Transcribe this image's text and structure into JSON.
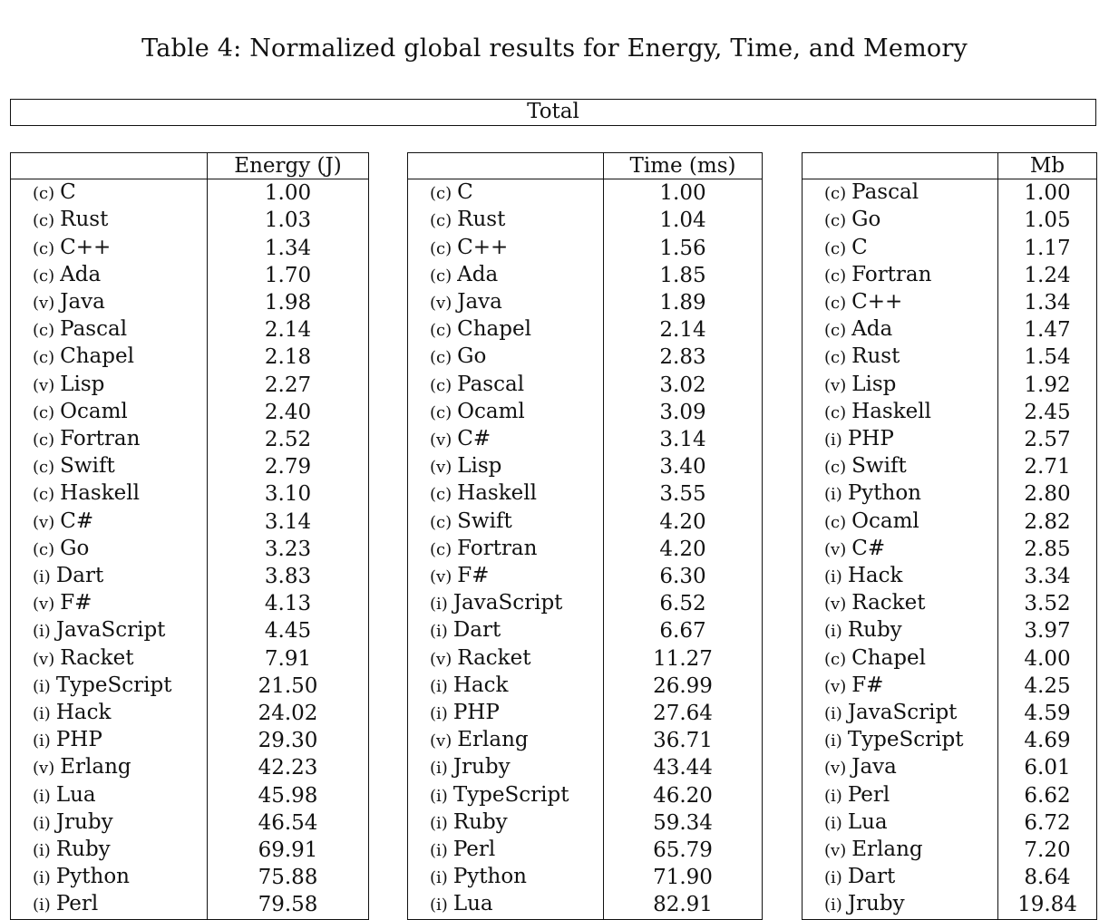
{
  "caption": "Table 4: Normalized global results for Energy, Time, and Memory",
  "total_label": "Total",
  "tables": [
    {
      "id": "energy",
      "header": "Energy (J)",
      "rows": [
        [
          "(c)",
          "C",
          "1.00"
        ],
        [
          "(c)",
          "Rust",
          "1.03"
        ],
        [
          "(c)",
          "C++",
          "1.34"
        ],
        [
          "(c)",
          "Ada",
          "1.70"
        ],
        [
          "(v)",
          "Java",
          "1.98"
        ],
        [
          "(c)",
          "Pascal",
          "2.14"
        ],
        [
          "(c)",
          "Chapel",
          "2.18"
        ],
        [
          "(v)",
          "Lisp",
          "2.27"
        ],
        [
          "(c)",
          "Ocaml",
          "2.40"
        ],
        [
          "(c)",
          "Fortran",
          "2.52"
        ],
        [
          "(c)",
          "Swift",
          "2.79"
        ],
        [
          "(c)",
          "Haskell",
          "3.10"
        ],
        [
          "(v)",
          "C#",
          "3.14"
        ],
        [
          "(c)",
          "Go",
          "3.23"
        ],
        [
          "(i)",
          "Dart",
          "3.83"
        ],
        [
          "(v)",
          "F#",
          "4.13"
        ],
        [
          "(i)",
          "JavaScript",
          "4.45"
        ],
        [
          "(v)",
          "Racket",
          "7.91"
        ],
        [
          "(i)",
          "TypeScript",
          "21.50"
        ],
        [
          "(i)",
          "Hack",
          "24.02"
        ],
        [
          "(i)",
          "PHP",
          "29.30"
        ],
        [
          "(v)",
          "Erlang",
          "42.23"
        ],
        [
          "(i)",
          "Lua",
          "45.98"
        ],
        [
          "(i)",
          "Jruby",
          "46.54"
        ],
        [
          "(i)",
          "Ruby",
          "69.91"
        ],
        [
          "(i)",
          "Python",
          "75.88"
        ],
        [
          "(i)",
          "Perl",
          "79.58"
        ]
      ]
    },
    {
      "id": "time",
      "header": "Time (ms)",
      "rows": [
        [
          "(c)",
          "C",
          "1.00"
        ],
        [
          "(c)",
          "Rust",
          "1.04"
        ],
        [
          "(c)",
          "C++",
          "1.56"
        ],
        [
          "(c)",
          "Ada",
          "1.85"
        ],
        [
          "(v)",
          "Java",
          "1.89"
        ],
        [
          "(c)",
          "Chapel",
          "2.14"
        ],
        [
          "(c)",
          "Go",
          "2.83"
        ],
        [
          "(c)",
          "Pascal",
          "3.02"
        ],
        [
          "(c)",
          "Ocaml",
          "3.09"
        ],
        [
          "(v)",
          "C#",
          "3.14"
        ],
        [
          "(v)",
          "Lisp",
          "3.40"
        ],
        [
          "(c)",
          "Haskell",
          "3.55"
        ],
        [
          "(c)",
          "Swift",
          "4.20"
        ],
        [
          "(c)",
          "Fortran",
          "4.20"
        ],
        [
          "(v)",
          "F#",
          "6.30"
        ],
        [
          "(i)",
          "JavaScript",
          "6.52"
        ],
        [
          "(i)",
          "Dart",
          "6.67"
        ],
        [
          "(v)",
          "Racket",
          "11.27"
        ],
        [
          "(i)",
          "Hack",
          "26.99"
        ],
        [
          "(i)",
          "PHP",
          "27.64"
        ],
        [
          "(v)",
          "Erlang",
          "36.71"
        ],
        [
          "(i)",
          "Jruby",
          "43.44"
        ],
        [
          "(i)",
          "TypeScript",
          "46.20"
        ],
        [
          "(i)",
          "Ruby",
          "59.34"
        ],
        [
          "(i)",
          "Perl",
          "65.79"
        ],
        [
          "(i)",
          "Python",
          "71.90"
        ],
        [
          "(i)",
          "Lua",
          "82.91"
        ]
      ]
    },
    {
      "id": "memory",
      "header": "Mb",
      "rows": [
        [
          "(c)",
          "Pascal",
          "1.00"
        ],
        [
          "(c)",
          "Go",
          "1.05"
        ],
        [
          "(c)",
          "C",
          "1.17"
        ],
        [
          "(c)",
          "Fortran",
          "1.24"
        ],
        [
          "(c)",
          "C++",
          "1.34"
        ],
        [
          "(c)",
          "Ada",
          "1.47"
        ],
        [
          "(c)",
          "Rust",
          "1.54"
        ],
        [
          "(v)",
          "Lisp",
          "1.92"
        ],
        [
          "(c)",
          "Haskell",
          "2.45"
        ],
        [
          "(i)",
          "PHP",
          "2.57"
        ],
        [
          "(c)",
          "Swift",
          "2.71"
        ],
        [
          "(i)",
          "Python",
          "2.80"
        ],
        [
          "(c)",
          "Ocaml",
          "2.82"
        ],
        [
          "(v)",
          "C#",
          "2.85"
        ],
        [
          "(i)",
          "Hack",
          "3.34"
        ],
        [
          "(v)",
          "Racket",
          "3.52"
        ],
        [
          "(i)",
          "Ruby",
          "3.97"
        ],
        [
          "(c)",
          "Chapel",
          "4.00"
        ],
        [
          "(v)",
          "F#",
          "4.25"
        ],
        [
          "(i)",
          "JavaScript",
          "4.59"
        ],
        [
          "(i)",
          "TypeScript",
          "4.69"
        ],
        [
          "(v)",
          "Java",
          "6.01"
        ],
        [
          "(i)",
          "Perl",
          "6.62"
        ],
        [
          "(i)",
          "Lua",
          "6.72"
        ],
        [
          "(v)",
          "Erlang",
          "7.20"
        ],
        [
          "(i)",
          "Dart",
          "8.64"
        ],
        [
          "(i)",
          "Jruby",
          "19.84"
        ]
      ]
    }
  ]
}
